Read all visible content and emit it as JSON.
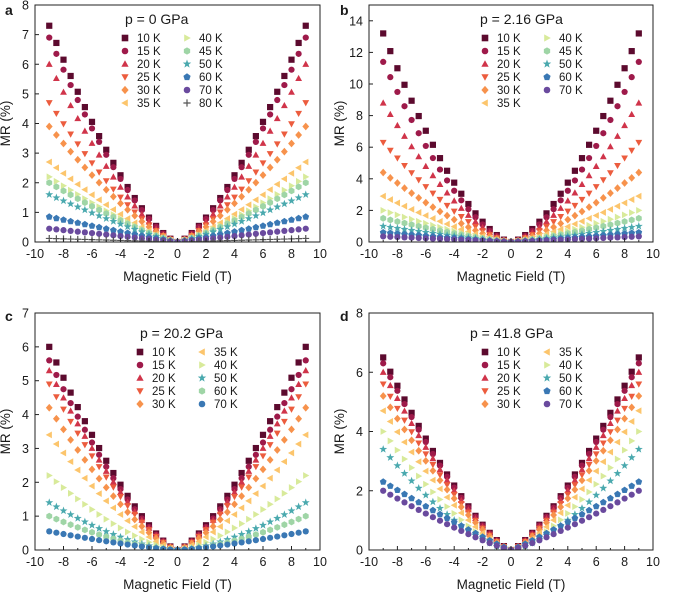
{
  "chart_data": [
    {
      "type": "scatter",
      "panel_label": "a",
      "title": "p = 0 GPa",
      "xlabel": "Magnetic Field (T)",
      "ylabel": "MR (%)",
      "xlim": [
        -10,
        10
      ],
      "ylim": [
        0,
        8
      ],
      "xticks": [
        "-10",
        "-8",
        "-6",
        "-4",
        "-2",
        "0",
        "2",
        "4",
        "6",
        "8",
        "10"
      ],
      "yticks": [
        "0",
        "1",
        "2",
        "3",
        "4",
        "5",
        "6",
        "7",
        "8"
      ],
      "legend_columns": 2,
      "x_range": [
        -9,
        9
      ],
      "series": [
        {
          "name": "10 K",
          "marker": "square",
          "color": "#5c0a2e",
          "value_at_9T": 7.3,
          "exponent": 1.45
        },
        {
          "name": "15 K",
          "marker": "circle",
          "color": "#9e1a4a",
          "value_at_9T": 6.9,
          "exponent": 1.45
        },
        {
          "name": "20 K",
          "marker": "triangle-up",
          "color": "#d0344a",
          "value_at_9T": 6.0,
          "exponent": 1.45
        },
        {
          "name": "25 K",
          "marker": "triangle-down",
          "color": "#ec5c3e",
          "value_at_9T": 4.7,
          "exponent": 1.4
        },
        {
          "name": "30 K",
          "marker": "diamond",
          "color": "#f7924c",
          "value_at_9T": 3.9,
          "exponent": 1.35
        },
        {
          "name": "35 K",
          "marker": "triangle-left",
          "color": "#fcc56c",
          "value_at_9T": 2.7,
          "exponent": 1.3
        },
        {
          "name": "40 K",
          "marker": "triangle-right",
          "color": "#d8ea9a",
          "value_at_9T": 2.2,
          "exponent": 1.25
        },
        {
          "name": "45 K",
          "marker": "hexagon",
          "color": "#9fd5a6",
          "value_at_9T": 2.0,
          "exponent": 1.25
        },
        {
          "name": "50 K",
          "marker": "star",
          "color": "#4aa9ae",
          "value_at_9T": 1.6,
          "exponent": 1.2
        },
        {
          "name": "60 K",
          "marker": "pentagon",
          "color": "#3a78b4",
          "value_at_9T": 0.85,
          "exponent": 1.1
        },
        {
          "name": "70 K",
          "marker": "circle",
          "color": "#6a4a9e",
          "value_at_9T": 0.45,
          "exponent": 1.0
        },
        {
          "name": "80 K",
          "marker": "plus",
          "color": "#555555",
          "value_at_9T": 0.12,
          "exponent": 1.0
        }
      ]
    },
    {
      "type": "scatter",
      "panel_label": "b",
      "title": "p = 2.16 GPa",
      "xlabel": "Magnetic Field (T)",
      "ylabel": "MR (%)",
      "xlim": [
        -10,
        10
      ],
      "ylim": [
        0,
        15
      ],
      "xticks": [
        "-10",
        "-8",
        "-6",
        "-4",
        "-2",
        "0",
        "2",
        "4",
        "6",
        "8",
        "10"
      ],
      "yticks": [
        "0",
        "2",
        "4",
        "6",
        "8",
        "10",
        "12",
        "14"
      ],
      "legend_columns": 2,
      "x_range": [
        -9,
        9
      ],
      "series": [
        {
          "name": "10 K",
          "marker": "square",
          "color": "#5c0a2e",
          "value_at_9T": 13.2,
          "exponent": 1.55
        },
        {
          "name": "15 K",
          "marker": "circle",
          "color": "#9e1a4a",
          "value_at_9T": 11.4,
          "exponent": 1.55
        },
        {
          "name": "20 K",
          "marker": "triangle-up",
          "color": "#d0344a",
          "value_at_9T": 8.8,
          "exponent": 1.5
        },
        {
          "name": "25 K",
          "marker": "triangle-down",
          "color": "#ec5c3e",
          "value_at_9T": 6.3,
          "exponent": 1.45
        },
        {
          "name": "30 K",
          "marker": "diamond",
          "color": "#f7924c",
          "value_at_9T": 4.4,
          "exponent": 1.4
        },
        {
          "name": "35 K",
          "marker": "triangle-left",
          "color": "#fcc56c",
          "value_at_9T": 2.9,
          "exponent": 1.35
        },
        {
          "name": "40 K",
          "marker": "triangle-right",
          "color": "#d8ea9a",
          "value_at_9T": 2.0,
          "exponent": 1.3
        },
        {
          "name": "45 K",
          "marker": "hexagon",
          "color": "#9fd5a6",
          "value_at_9T": 1.5,
          "exponent": 1.25
        },
        {
          "name": "50 K",
          "marker": "star",
          "color": "#4aa9ae",
          "value_at_9T": 1.0,
          "exponent": 1.2
        },
        {
          "name": "60 K",
          "marker": "pentagon",
          "color": "#3a78b4",
          "value_at_9T": 0.6,
          "exponent": 1.1
        },
        {
          "name": "70 K",
          "marker": "circle",
          "color": "#6a4a9e",
          "value_at_9T": 0.35,
          "exponent": 1.0
        }
      ]
    },
    {
      "type": "scatter",
      "panel_label": "c",
      "title": "p = 20.2 GPa",
      "xlabel": "Magnetic Field (T)",
      "ylabel": "MR (%)",
      "xlim": [
        -10,
        10
      ],
      "ylim": [
        0,
        7
      ],
      "xticks": [
        "-10",
        "-8",
        "-6",
        "-4",
        "-2",
        "0",
        "2",
        "4",
        "6",
        "8",
        "10"
      ],
      "yticks": [
        "0",
        "1",
        "2",
        "3",
        "4",
        "5",
        "6",
        "7"
      ],
      "legend_columns": 2,
      "x_range": [
        -9,
        9
      ],
      "series": [
        {
          "name": "10 K",
          "marker": "square",
          "color": "#5c0a2e",
          "value_at_9T": 6.0,
          "exponent": 1.4
        },
        {
          "name": "15 K",
          "marker": "circle",
          "color": "#9e1a4a",
          "value_at_9T": 5.6,
          "exponent": 1.4
        },
        {
          "name": "20 K",
          "marker": "triangle-up",
          "color": "#d0344a",
          "value_at_9T": 5.3,
          "exponent": 1.4
        },
        {
          "name": "25 K",
          "marker": "triangle-down",
          "color": "#ec5c3e",
          "value_at_9T": 4.9,
          "exponent": 1.4
        },
        {
          "name": "30 K",
          "marker": "diamond",
          "color": "#f7924c",
          "value_at_9T": 4.2,
          "exponent": 1.4
        },
        {
          "name": "35 K",
          "marker": "triangle-left",
          "color": "#fcc56c",
          "value_at_9T": 3.4,
          "exponent": 1.45
        },
        {
          "name": "40 K",
          "marker": "triangle-right",
          "color": "#d8ea9a",
          "value_at_9T": 2.2,
          "exponent": 1.5
        },
        {
          "name": "50 K",
          "marker": "star",
          "color": "#4aa9ae",
          "value_at_9T": 1.4,
          "exponent": 1.6
        },
        {
          "name": "60 K",
          "marker": "hexagon",
          "color": "#9fd5a6",
          "value_at_9T": 1.0,
          "exponent": 1.6
        },
        {
          "name": "70 K",
          "marker": "circle",
          "color": "#3a78b4",
          "value_at_9T": 0.55,
          "exponent": 1.3
        }
      ]
    },
    {
      "type": "scatter",
      "panel_label": "d",
      "title": "p = 41.8 GPa",
      "xlabel": "Magnetic Field (T)",
      "ylabel": "MR (%)",
      "xlim": [
        -10,
        10
      ],
      "ylim": [
        0,
        8
      ],
      "xticks": [
        "-10",
        "-8",
        "-6",
        "-4",
        "-2",
        "0",
        "2",
        "4",
        "6",
        "8",
        "10"
      ],
      "yticks": [
        "0",
        "2",
        "4",
        "6",
        "8"
      ],
      "legend_columns": 2,
      "x_range": [
        -9,
        9
      ],
      "series": [
        {
          "name": "10 K",
          "marker": "square",
          "color": "#5c0a2e",
          "value_at_9T": 6.5,
          "exponent": 1.35
        },
        {
          "name": "15 K",
          "marker": "circle",
          "color": "#9e1a4a",
          "value_at_9T": 6.3,
          "exponent": 1.35
        },
        {
          "name": "20 K",
          "marker": "triangle-up",
          "color": "#d0344a",
          "value_at_9T": 6.0,
          "exponent": 1.35
        },
        {
          "name": "25 K",
          "marker": "triangle-down",
          "color": "#ec5c3e",
          "value_at_9T": 5.6,
          "exponent": 1.35
        },
        {
          "name": "30 K",
          "marker": "diamond",
          "color": "#f7924c",
          "value_at_9T": 5.2,
          "exponent": 1.35
        },
        {
          "name": "35 K",
          "marker": "triangle-left",
          "color": "#fcc56c",
          "value_at_9T": 4.7,
          "exponent": 1.4
        },
        {
          "name": "40 K",
          "marker": "triangle-right",
          "color": "#d8ea9a",
          "value_at_9T": 4.0,
          "exponent": 1.45
        },
        {
          "name": "50 K",
          "marker": "star",
          "color": "#4aa9ae",
          "value_at_9T": 3.4,
          "exponent": 1.5
        },
        {
          "name": "60 K",
          "marker": "pentagon",
          "color": "#3a78b4",
          "value_at_9T": 2.3,
          "exponent": 1.1
        },
        {
          "name": "70 K",
          "marker": "circle",
          "color": "#6a4a9e",
          "value_at_9T": 2.0,
          "exponent": 1.2
        }
      ]
    }
  ]
}
